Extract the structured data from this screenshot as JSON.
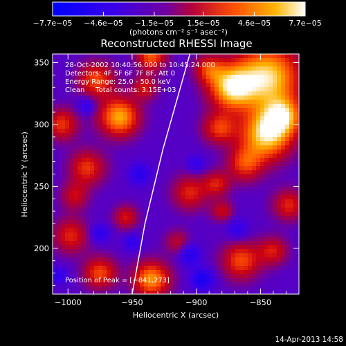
{
  "chart_data": {
    "type": "heatmap",
    "title": "Reconstructed RHESSI Image",
    "xlabel": "Heliocentric X (arcsec)",
    "ylabel": "Heliocentric Y (arcsec)",
    "xlim": [
      -1012,
      -820
    ],
    "ylim": [
      163,
      357
    ],
    "x_ticks": [
      -1000,
      -950,
      -900,
      -850
    ],
    "y_ticks": [
      200,
      250,
      300,
      350
    ],
    "x_tick_labels": [
      "−1000",
      "−950",
      "−900",
      "−850"
    ],
    "y_tick_labels": [
      "200",
      "250",
      "300",
      "350"
    ],
    "colorbar": {
      "range": [
        -7.7e-05,
        7.7e-05
      ],
      "ticks": [
        -7.7e-05,
        -4.6e-05,
        -1.5e-05,
        1.5e-05,
        4.6e-05,
        7.7e-05
      ],
      "tick_labels": [
        "−7.7e−05",
        "−4.6e−05",
        "−1.5e−05",
        "1.5e−05",
        "4.6e−05",
        "7.7e−05"
      ],
      "unit_label": "(photons cm⁻² s⁻¹ asec⁻²)",
      "colors": [
        "#0000ff",
        "#5a00c8",
        "#b4003c",
        "#ff5000",
        "#ffb400",
        "#ffffff"
      ]
    },
    "annotations": {
      "time": "28-Oct-2002 10:40:56.000 to 10:45:24.000",
      "detectors": "Detectors: 4F 5F 6F 7F 8F, Att 0",
      "energy": "Energy Range: 25.0 - 50.0 keV",
      "clean": "Clean     Total counts: 3.15E+03",
      "peak": "Position of Peak = [−841,273]"
    },
    "limb_curve": [
      [
        -950,
        163
      ],
      [
        -940,
        220
      ],
      [
        -926,
        280
      ],
      [
        -905,
        357
      ]
    ],
    "blobs": [
      {
        "x": -845,
        "y": 338,
        "sigma": 18,
        "amp": 1.0
      },
      {
        "x": -873,
        "y": 330,
        "sigma": 12,
        "amp": 0.9
      },
      {
        "x": -845,
        "y": 292,
        "sigma": 14,
        "amp": 1.0
      },
      {
        "x": -832,
        "y": 307,
        "sigma": 10,
        "amp": 0.7
      },
      {
        "x": -882,
        "y": 297,
        "sigma": 9,
        "amp": 0.55
      },
      {
        "x": -862,
        "y": 268,
        "sigma": 10,
        "amp": 0.55
      },
      {
        "x": -905,
        "y": 245,
        "sigma": 10,
        "amp": 0.5
      },
      {
        "x": -884,
        "y": 252,
        "sigma": 7,
        "amp": 0.45
      },
      {
        "x": -960,
        "y": 306,
        "sigma": 11,
        "amp": 0.85
      },
      {
        "x": -978,
        "y": 336,
        "sigma": 10,
        "amp": 0.6
      },
      {
        "x": -935,
        "y": 355,
        "sigma": 8,
        "amp": 0.65
      },
      {
        "x": -1005,
        "y": 300,
        "sigma": 9,
        "amp": 0.55
      },
      {
        "x": -985,
        "y": 265,
        "sigma": 10,
        "amp": 0.55
      },
      {
        "x": -998,
        "y": 210,
        "sigma": 10,
        "amp": 0.5
      },
      {
        "x": -995,
        "y": 242,
        "sigma": 8,
        "amp": 0.4
      },
      {
        "x": -975,
        "y": 180,
        "sigma": 9,
        "amp": 0.6
      },
      {
        "x": -955,
        "y": 225,
        "sigma": 7,
        "amp": 0.45
      },
      {
        "x": -935,
        "y": 175,
        "sigma": 10,
        "amp": 0.8
      },
      {
        "x": -915,
        "y": 205,
        "sigma": 7,
        "amp": 0.35
      },
      {
        "x": -865,
        "y": 190,
        "sigma": 11,
        "amp": 0.6
      },
      {
        "x": -828,
        "y": 235,
        "sigma": 9,
        "amp": 0.5
      },
      {
        "x": -840,
        "y": 198,
        "sigma": 8,
        "amp": 0.45
      },
      {
        "x": -940,
        "y": 330,
        "sigma": 7,
        "amp": 0.45
      },
      {
        "x": -890,
        "y": 345,
        "sigma": 8,
        "amp": 0.5
      },
      {
        "x": -880,
        "y": 230,
        "sigma": 6,
        "amp": 0.4
      },
      {
        "x": -975,
        "y": 212,
        "sigma": 5,
        "amp": -0.35
      },
      {
        "x": -944,
        "y": 260,
        "sigma": 6,
        "amp": -0.35
      },
      {
        "x": -985,
        "y": 315,
        "sigma": 5,
        "amp": -0.35
      },
      {
        "x": -905,
        "y": 195,
        "sigma": 6,
        "amp": -0.4
      },
      {
        "x": -895,
        "y": 175,
        "sigma": 6,
        "amp": -0.5
      },
      {
        "x": -950,
        "y": 205,
        "sigma": 5,
        "amp": -0.3
      },
      {
        "x": -868,
        "y": 215,
        "sigma": 6,
        "amp": -0.3
      },
      {
        "x": -900,
        "y": 268,
        "sigma": 5,
        "amp": -0.3
      },
      {
        "x": -1008,
        "y": 178,
        "sigma": 5,
        "amp": -0.3
      }
    ]
  },
  "footer_date": "14-Apr-2013 14:58"
}
